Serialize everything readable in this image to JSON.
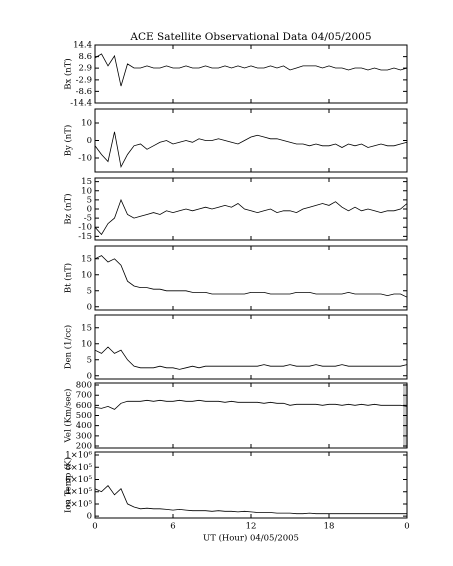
{
  "title": "ACE Satellite Observational Data   04/05/2005",
  "chart_data": [
    {
      "type": "line",
      "ylabel": "Bx (nT)",
      "color": "#000000",
      "xlim": [
        0,
        24
      ],
      "ylim": [
        -14.4,
        14.4
      ],
      "yticks": [
        -14.4,
        -8.6,
        -2.9,
        2.9,
        8.6,
        14.4
      ],
      "x": [
        0,
        0.5,
        1,
        1.5,
        2,
        2.5,
        3,
        3.5,
        4,
        4.5,
        5,
        5.5,
        6,
        6.5,
        7,
        7.5,
        8,
        8.5,
        9,
        9.5,
        10,
        10.5,
        11,
        11.5,
        12,
        12.5,
        13,
        13.5,
        14,
        14.5,
        15,
        15.5,
        16,
        16.5,
        17,
        17.5,
        18,
        18.5,
        19,
        19.5,
        20,
        20.5,
        21,
        21.5,
        22,
        22.5,
        23,
        23.5,
        24
      ],
      "values": [
        8,
        10,
        4,
        9,
        -6,
        5,
        3,
        3,
        4,
        3,
        3,
        4,
        3,
        3,
        4,
        3,
        3,
        4,
        3,
        3,
        4,
        3,
        4,
        3,
        4,
        3,
        3,
        4,
        3,
        4,
        2,
        3,
        4,
        4,
        4,
        3,
        4,
        3,
        3,
        2,
        3,
        3,
        2,
        3,
        2,
        2,
        3,
        2,
        3
      ]
    },
    {
      "type": "line",
      "ylabel": "By (nT)",
      "color": "#000000",
      "xlim": [
        0,
        24
      ],
      "ylim": [
        -18,
        18
      ],
      "yticks": [
        -10,
        0,
        10
      ],
      "x": [
        0,
        0.5,
        1,
        1.5,
        2,
        2.5,
        3,
        3.5,
        4,
        4.5,
        5,
        5.5,
        6,
        6.5,
        7,
        7.5,
        8,
        8.5,
        9,
        9.5,
        10,
        10.5,
        11,
        11.5,
        12,
        12.5,
        13,
        13.5,
        14,
        14.5,
        15,
        15.5,
        16,
        16.5,
        17,
        17.5,
        18,
        18.5,
        19,
        19.5,
        20,
        20.5,
        21,
        21.5,
        22,
        22.5,
        23,
        23.5,
        24
      ],
      "values": [
        -3,
        -8,
        -12,
        5,
        -15,
        -8,
        -3,
        -2,
        -5,
        -3,
        -1,
        0,
        -2,
        -1,
        0,
        -1,
        1,
        0,
        0,
        1,
        0,
        -1,
        -2,
        0,
        2,
        3,
        2,
        1,
        1,
        0,
        -1,
        -2,
        -2,
        -3,
        -2,
        -3,
        -3,
        -2,
        -4,
        -2,
        -3,
        -2,
        -4,
        -3,
        -2,
        -3,
        -3,
        -2,
        -1
      ]
    },
    {
      "type": "line",
      "ylabel": "Bz (nT)",
      "color": "#000000",
      "xlim": [
        0,
        24
      ],
      "ylim": [
        -17,
        17
      ],
      "yticks": [
        -15,
        -10,
        -5,
        0,
        5,
        10,
        15
      ],
      "x": [
        0,
        0.5,
        1,
        1.5,
        2,
        2.5,
        3,
        3.5,
        4,
        4.5,
        5,
        5.5,
        6,
        6.5,
        7,
        7.5,
        8,
        8.5,
        9,
        9.5,
        10,
        10.5,
        11,
        11.5,
        12,
        12.5,
        13,
        13.5,
        14,
        14.5,
        15,
        15.5,
        16,
        16.5,
        17,
        17.5,
        18,
        18.5,
        19,
        19.5,
        20,
        20.5,
        21,
        21.5,
        22,
        22.5,
        23,
        23.5,
        24
      ],
      "values": [
        -10,
        -14,
        -8,
        -5,
        5,
        -3,
        -5,
        -4,
        -3,
        -2,
        -3,
        -1,
        -2,
        -1,
        0,
        -1,
        0,
        1,
        0,
        1,
        2,
        1,
        3,
        0,
        -1,
        -2,
        -1,
        0,
        -2,
        -1,
        -1,
        -2,
        0,
        1,
        2,
        3,
        2,
        4,
        1,
        -1,
        1,
        -1,
        0,
        -1,
        -2,
        -1,
        -1,
        0,
        3
      ]
    },
    {
      "type": "line",
      "ylabel": "Bt (nT)",
      "color": "#000000",
      "xlim": [
        0,
        24
      ],
      "ylim": [
        -1,
        19
      ],
      "yticks": [
        0,
        5,
        10,
        15
      ],
      "x": [
        0,
        0.5,
        1,
        1.5,
        2,
        2.5,
        3,
        3.5,
        4,
        4.5,
        5,
        5.5,
        6,
        6.5,
        7,
        7.5,
        8,
        8.5,
        9,
        9.5,
        10,
        10.5,
        11,
        11.5,
        12,
        12.5,
        13,
        13.5,
        14,
        14.5,
        15,
        15.5,
        16,
        16.5,
        17,
        17.5,
        18,
        18.5,
        19,
        19.5,
        20,
        20.5,
        21,
        21.5,
        22,
        22.5,
        23,
        23.5,
        24
      ],
      "values": [
        15,
        16,
        14,
        15,
        13,
        8,
        6.5,
        6,
        6,
        5.5,
        5.5,
        5,
        5,
        5,
        5,
        4.5,
        4.5,
        4.5,
        4,
        4,
        4,
        4,
        4,
        4,
        4.5,
        4.5,
        4.5,
        4,
        4,
        4,
        4,
        4.5,
        4.5,
        4.5,
        4,
        4,
        4,
        4,
        4,
        4.5,
        4,
        4,
        4,
        4,
        4,
        3.5,
        4,
        4,
        3
      ]
    },
    {
      "type": "line",
      "ylabel": "Den (1/cc)",
      "color": "#000000",
      "xlim": [
        0,
        24
      ],
      "ylim": [
        -1,
        19
      ],
      "yticks": [
        0,
        5,
        10,
        15
      ],
      "x": [
        0,
        0.5,
        1,
        1.5,
        2,
        2.5,
        3,
        3.5,
        4,
        4.5,
        5,
        5.5,
        6,
        6.5,
        7,
        7.5,
        8,
        8.5,
        9,
        9.5,
        10,
        10.5,
        11,
        11.5,
        12,
        12.5,
        13,
        13.5,
        14,
        14.5,
        15,
        15.5,
        16,
        16.5,
        17,
        17.5,
        18,
        18.5,
        19,
        19.5,
        20,
        20.5,
        21,
        21.5,
        22,
        22.5,
        23,
        23.5,
        24
      ],
      "values": [
        8,
        7,
        9,
        7,
        8,
        5,
        3,
        2.5,
        2.5,
        2.5,
        3,
        2.5,
        2.5,
        2,
        2.5,
        3,
        2.5,
        3,
        3,
        3,
        3,
        3,
        3,
        3,
        3,
        3,
        3.5,
        3,
        3,
        3,
        3.5,
        3,
        3,
        3,
        3.5,
        3,
        3,
        3,
        3.5,
        3,
        3,
        3,
        3,
        3,
        3,
        3,
        3,
        3,
        3.5
      ]
    },
    {
      "type": "line",
      "ylabel": "Vel (Km/sec)",
      "color": "#000000",
      "xlim": [
        0,
        24
      ],
      "ylim": [
        180,
        820
      ],
      "yticks": [
        200,
        300,
        400,
        500,
        600,
        700,
        800
      ],
      "x": [
        0,
        0.5,
        1,
        1.5,
        2,
        2.5,
        3,
        3.5,
        4,
        4.5,
        5,
        5.5,
        6,
        6.5,
        7,
        7.5,
        8,
        8.5,
        9,
        9.5,
        10,
        10.5,
        11,
        11.5,
        12,
        12.5,
        13,
        13.5,
        14,
        14.5,
        15,
        15.5,
        16,
        16.5,
        17,
        17.5,
        18,
        18.5,
        19,
        19.5,
        20,
        20.5,
        21,
        21.5,
        22,
        22.5,
        23,
        23.5,
        24
      ],
      "values": [
        580,
        570,
        590,
        560,
        620,
        640,
        640,
        640,
        650,
        640,
        650,
        640,
        640,
        650,
        640,
        640,
        650,
        640,
        640,
        640,
        630,
        640,
        630,
        630,
        630,
        630,
        620,
        630,
        620,
        620,
        600,
        610,
        610,
        610,
        610,
        600,
        610,
        610,
        600,
        610,
        600,
        610,
        600,
        610,
        600,
        600,
        600,
        600,
        590
      ]
    },
    {
      "type": "line",
      "ylabel": "Ion Temp (K)",
      "xlabel": "UT (Hour)   04/05/2005",
      "color": "#000000",
      "xlim": [
        0,
        24
      ],
      "xticks": [
        0,
        6,
        12,
        18,
        {
          "value": 24,
          "label": "0"
        }
      ],
      "ylim": [
        -30000,
        1050000
      ],
      "yticks": [
        0,
        {
          "value": 200000,
          "label": "2×10⁵"
        },
        {
          "value": 400000,
          "label": "4×10⁵"
        },
        {
          "value": 600000,
          "label": "6×10⁵"
        },
        {
          "value": 800000,
          "label": "8×10⁵"
        },
        {
          "value": 1000000,
          "label": "1×10⁶"
        }
      ],
      "x": [
        0,
        0.5,
        1,
        1.5,
        2,
        2.5,
        3,
        3.5,
        4,
        4.5,
        5,
        5.5,
        6,
        6.5,
        7,
        7.5,
        8,
        8.5,
        9,
        9.5,
        10,
        10.5,
        11,
        11.5,
        12,
        12.5,
        13,
        13.5,
        14,
        14.5,
        15,
        15.5,
        16,
        16.5,
        17,
        17.5,
        18,
        18.5,
        19,
        19.5,
        20,
        20.5,
        21,
        21.5,
        22,
        22.5,
        23,
        23.5,
        24
      ],
      "values": [
        450000,
        400000,
        500000,
        350000,
        450000,
        200000,
        150000,
        120000,
        130000,
        120000,
        120000,
        110000,
        100000,
        110000,
        100000,
        90000,
        90000,
        90000,
        80000,
        90000,
        80000,
        80000,
        70000,
        80000,
        70000,
        60000,
        60000,
        60000,
        50000,
        50000,
        50000,
        40000,
        40000,
        50000,
        40000,
        40000,
        40000,
        40000,
        40000,
        40000,
        40000,
        40000,
        40000,
        40000,
        40000,
        40000,
        40000,
        40000,
        40000
      ]
    }
  ]
}
